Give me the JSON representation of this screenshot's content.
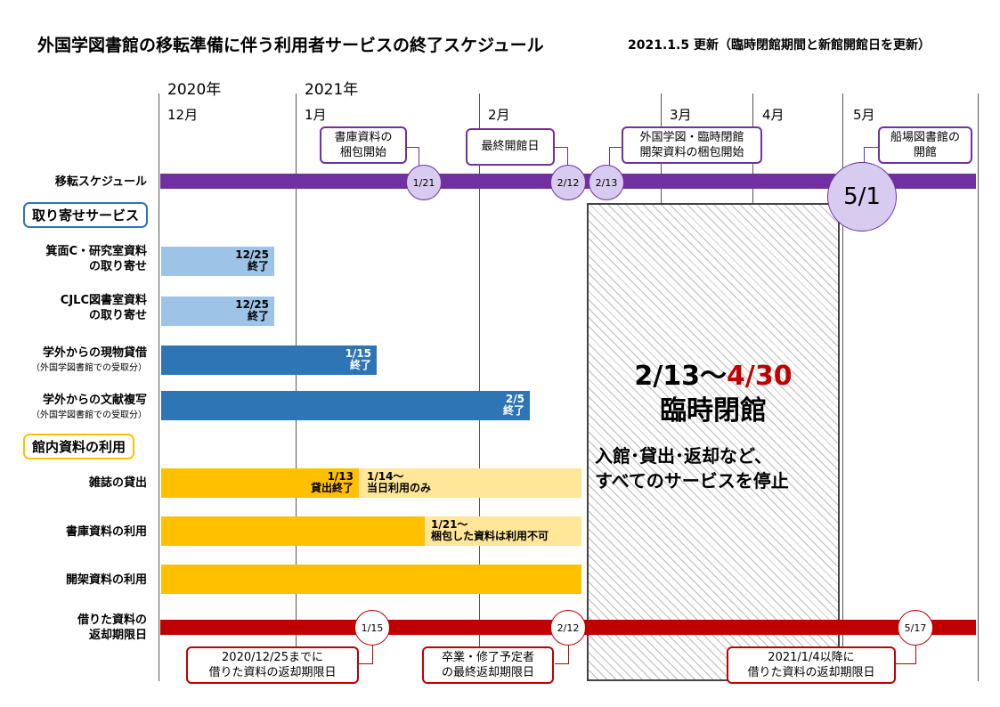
{
  "title": "外国学図書館の移転準備に伴う利用者サービスの終了スケジュール",
  "updated": "2021.1.5 更新（臨時閉館期間と新館開館日を更新）",
  "years": [
    "2020年",
    "2021年"
  ],
  "months": [
    "12月",
    "1月",
    "2月",
    "3月",
    "4月",
    "5月"
  ],
  "rows": {
    "move": "移転スケジュール",
    "minoh_1": "箕面C・研究室資料",
    "minoh_2": "の取り寄せ",
    "cjlc_1": "CJLC図書室資料",
    "cjlc_2": "の取り寄せ",
    "loan_1": "学外からの現物貸借",
    "loan_2": "（外国学図書館での受取分）",
    "copy_1": "学外からの文献複写",
    "copy_2": "（外国学図書館での受取分）",
    "magazine": "雑誌の貸出",
    "stack": "書庫資料の利用",
    "open": "開架資料の利用",
    "due_1": "借りた資料の",
    "due_2": "返却期限日"
  },
  "sections": {
    "retrieval": "取り寄せサービス",
    "inlibrary": "館内資料の利用"
  },
  "move_callouts": {
    "stack_pack_1": "書庫資料の",
    "stack_pack_2": "梱包開始",
    "last_day": "最終開館日",
    "open_pack_1": "外国学図・臨時閉館",
    "open_pack_2": "開架資料の梱包開始",
    "funaba_1": "船場図書館の",
    "funaba_2": "開館"
  },
  "move_dates": {
    "d121": "1/21",
    "d212": "2/12",
    "d213": "2/13",
    "d51": "5/1"
  },
  "bar_labels": {
    "minoh_date": "12/25",
    "minoh_end": "終了",
    "cjlc_date": "12/25",
    "cjlc_end": "終了",
    "loan_date": "1/15",
    "loan_end": "終了",
    "copy_date": "2/5",
    "copy_end": "終了",
    "mag_date": "1/13",
    "mag_end": "貸出終了",
    "mag_after_1": "1/14～",
    "mag_after_2": "当日利用のみ",
    "stack_after_1": "1/21～",
    "stack_after_2": "梱包した資料は利用不可"
  },
  "closure": {
    "start": "2/13～",
    "end": "4/30",
    "label": "臨時閉館",
    "desc_1": "入館･貸出･返却など、",
    "desc_2": "すべてのサービスを停止"
  },
  "due_dates": {
    "d115": "1/15",
    "d212": "2/12",
    "d517": "5/17"
  },
  "due_callouts": {
    "c1_1": "2020/12/25までに",
    "c1_2": "借りた資料の返却期限日",
    "c2_1": "卒業・修了予定者",
    "c2_2": "の最終返却期限日",
    "c3_1": "2021/1/4以降に",
    "c3_2": "借りた資料の返却期限日"
  },
  "colors": {
    "purple": "#7030a0",
    "light_blue": "#9dc3e6",
    "blue": "#2e75b6",
    "yellow": "#ffc000",
    "light_yellow": "#ffe699",
    "red": "#c00000",
    "section_blue": "#2e75b6",
    "section_yellow": "#ffc000"
  }
}
